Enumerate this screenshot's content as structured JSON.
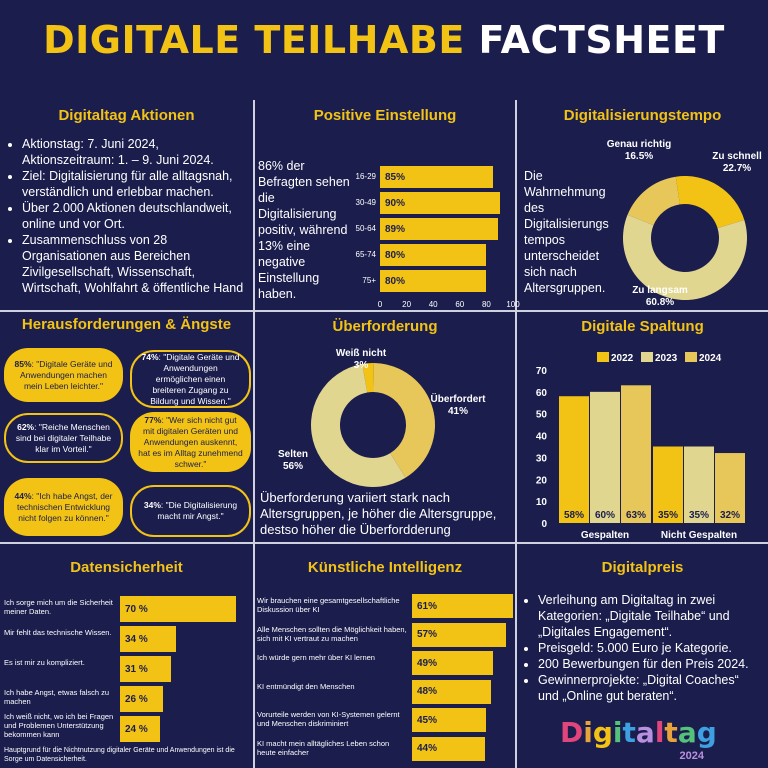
{
  "title": {
    "part1": "DIGITALE TEILHABE",
    "part2": "FACTSHEET"
  },
  "colors": {
    "bg": "#1b1d4d",
    "accent": "#f2c315",
    "light": "#e0d690",
    "mid": "#e8c75a"
  },
  "panels": {
    "aktionen": {
      "title": "Digitaltag Aktionen",
      "bullets": [
        "Aktionstag: 7. Juni 2024, Aktionszeitraum: 1. – 9. Juni 2024.",
        "Ziel: Digitalisierung für alle alltagsnah, verständlich und erlebbar machen.",
        "Über 2.000 Aktionen deutschlandweit, online und vor Ort.",
        "Zusammenschluss von 28 Organisationen aus Bereichen Zivilgesellschaft, Wissenschaft, Wirtschaft, Wohlfahrt & öffentliche Hand"
      ]
    },
    "einstellung": {
      "title": "Positive Einstellung",
      "text": "86% der Befragten sehen die Digitalisierung positiv, während 13% eine negative Einstellung haben."
    },
    "tempo": {
      "title": "Digitalisierungstempo",
      "text": "Die Wahrnehmung des Digitalisierungs tempos unterscheidet sich nach Altersgruppen."
    },
    "herausforderungen": {
      "title": "Herausforderungen & Ängste",
      "bubbles": [
        {
          "pct": "85%",
          "text": ": \"Digitale Geräte und Anwendungen machen mein Leben leichter.\""
        },
        {
          "pct": "74%",
          "text": ": \"Digitale Geräte und Anwendungen ermöglichen einen breiteren Zugang zu Bildung und Wissen.\""
        },
        {
          "pct": "62%",
          "text": ": \"Reiche Menschen sind bei digitaler Teilhabe klar im Vorteil.\""
        },
        {
          "pct": "77%",
          "text": ": \"Wer sich nicht gut mit digitalen Geräten und Anwendungen auskennt, hat es im Alltag zunehmend schwer.\""
        },
        {
          "pct": "44%",
          "text": ": \"Ich habe Angst, der technischen Entwicklung nicht folgen zu können.\""
        },
        {
          "pct": "34%",
          "text": ": \"Die Digitalisierung macht mir Angst.\""
        }
      ]
    },
    "ueberforderung": {
      "title": "Überforderung",
      "text": "Überforderung variiert stark nach Altersgruppen, je höher die Altersgruppe, destso höher die Überfordderung"
    },
    "spaltung": {
      "title": "Digitale Spaltung"
    },
    "datensicherheit": {
      "title": "Datensicherheit",
      "footnote": "Hauptgrund für die Nichtnutzung digitaler Geräte und Anwendungen ist die Sorge um Datensicherheit."
    },
    "ki": {
      "title": "Künstliche Intelligenz"
    },
    "digitalpreis": {
      "title": "Digitalpreis",
      "bullets": [
        "Verleihung am Digitaltag in zwei Kategorien: „Digitale Teilhabe“ und „Digitales Engagement“.",
        "Preisgeld: 5.000 Euro je Kategorie.",
        "200 Bewerbungen für den Preis 2024.",
        "Gewinnerprojekte: „Digital Coaches“ und „Online gut beraten“."
      ],
      "logo": {
        "word": "Digitaltag",
        "year": "2024"
      }
    }
  },
  "chart_data": [
    {
      "id": "einstellung",
      "type": "bar",
      "orientation": "horizontal",
      "categories": [
        "16-29",
        "30-49",
        "50-64",
        "65-74",
        "75+"
      ],
      "values": [
        85,
        90,
        89,
        80,
        80
      ],
      "labels": [
        "85%",
        "90%",
        "89%",
        "80%",
        "80%"
      ],
      "xticks": [
        "0",
        "20",
        "40",
        "60",
        "80",
        "100"
      ],
      "xlim": [
        0,
        100
      ]
    },
    {
      "id": "tempo",
      "type": "pie",
      "labels": [
        "Genau richtig",
        "Zu schnell",
        "Zu langsam"
      ],
      "values": [
        16.5,
        22.7,
        60.8
      ],
      "value_labels": [
        "16.5%",
        "22.7%",
        "60.8%"
      ],
      "colors": [
        "#e8c75a",
        "#f2c315",
        "#e0d690"
      ]
    },
    {
      "id": "ueberforderung",
      "type": "pie",
      "labels": [
        "Weiß nicht",
        "Überfordert",
        "Selten"
      ],
      "values": [
        3,
        41,
        56
      ],
      "value_labels": [
        "3%",
        "41%",
        "56%"
      ],
      "colors": [
        "#f2c315",
        "#e8c75a",
        "#e0d690"
      ]
    },
    {
      "id": "spaltung",
      "type": "bar",
      "categories": [
        "Gespalten",
        "Nicht Gespalten"
      ],
      "series": [
        {
          "name": "2022",
          "values": [
            58,
            35
          ],
          "color": "#f2c315"
        },
        {
          "name": "2023",
          "values": [
            60,
            35
          ],
          "color": "#e0d690"
        },
        {
          "name": "2024",
          "values": [
            63,
            32
          ],
          "color": "#e8c75a"
        }
      ],
      "value_labels": [
        [
          "58%",
          "35%"
        ],
        [
          "60%",
          "35%"
        ],
        [
          "63%",
          "32%"
        ]
      ],
      "yticks": [
        "0",
        "10",
        "20",
        "30",
        "40",
        "50",
        "60",
        "70"
      ],
      "ylim": [
        0,
        70
      ],
      "legend": "top"
    },
    {
      "id": "datensicherheit",
      "type": "bar",
      "orientation": "horizontal",
      "categories": [
        "Ich sorge mich um die Sicherheit meiner Daten.",
        "Mir fehlt das technische Wissen.",
        "Es ist mir zu kompliziert.",
        "Ich habe Angst, etwas falsch zu machen",
        "Ich weiß nicht, wo ich bei Fragen und Problemen Unterstützung bekommen kann"
      ],
      "values": [
        70,
        34,
        31,
        26,
        24
      ],
      "labels": [
        "70 %",
        "34 %",
        "31 %",
        "26 %",
        "24 %"
      ]
    },
    {
      "id": "ki",
      "type": "bar",
      "orientation": "horizontal",
      "categories": [
        "Wir brauchen eine gesamtgesellschaftliche Diskussion über KI",
        "Alle Menschen sollten die Möglichkeit haben, sich mit KI vertraut zu machen",
        "Ich würde gern mehr über KI lernen",
        "KI entmündigt den Menschen",
        "Vorurteile werden von KI-Systemen gelernt und Menschen diskriminiert",
        "KI macht mein alltägliches Leben schon heute einfacher"
      ],
      "values": [
        61,
        57,
        49,
        48,
        45,
        44
      ],
      "labels": [
        "61%",
        "57%",
        "49%",
        "48%",
        "45%",
        "44%"
      ]
    }
  ]
}
